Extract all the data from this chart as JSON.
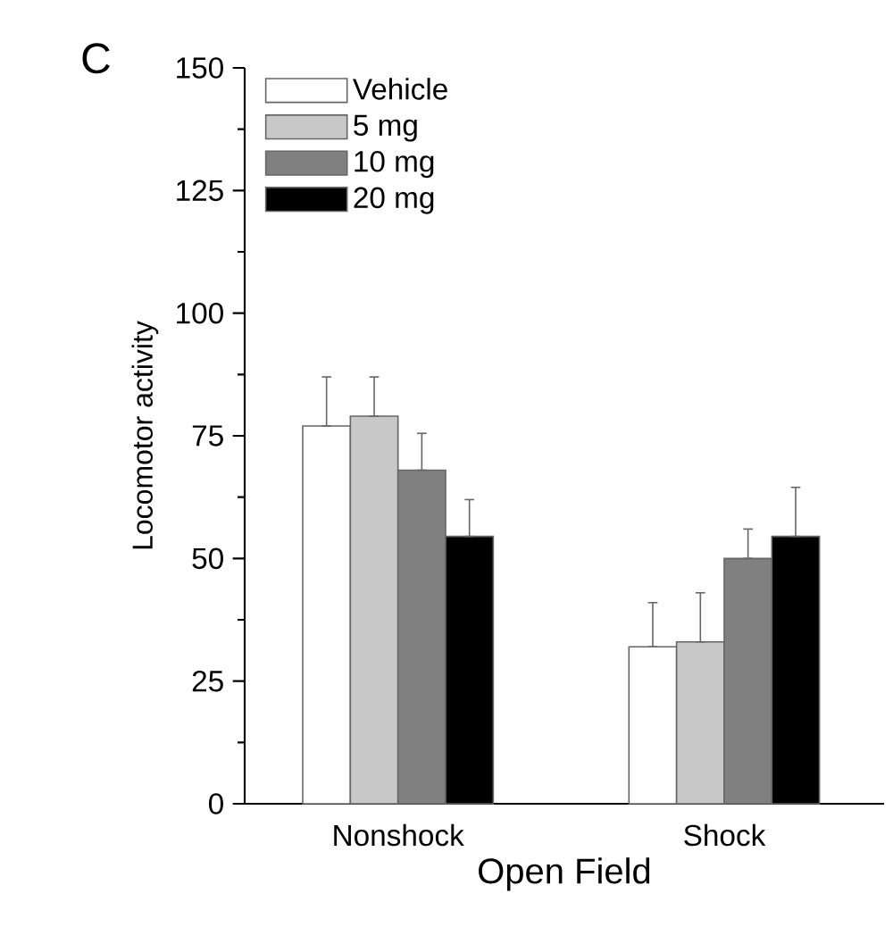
{
  "chart_data": {
    "type": "bar",
    "xlabel": "Open Field",
    "ylabel": "Locomotor activity",
    "annotations": [
      "C"
    ],
    "categories": [
      "Nonshock",
      "Shock"
    ],
    "series": [
      {
        "name": "Vehicle",
        "color": "#ffffff",
        "values": [
          77,
          32
        ],
        "errors": [
          [
            77,
            87
          ],
          [
            32,
            41
          ]
        ]
      },
      {
        "name": "5 mg",
        "color": "#c8c8c8",
        "values": [
          79,
          33
        ],
        "errors": [
          [
            79,
            87
          ],
          [
            33,
            43
          ]
        ]
      },
      {
        "name": "10 mg",
        "color": "#808080",
        "values": [
          68,
          50
        ],
        "errors": [
          [
            68,
            75.5
          ],
          [
            50,
            56
          ]
        ]
      },
      {
        "name": "20 mg",
        "color": "#000000",
        "values": [
          54.5,
          54.5
        ],
        "errors": [
          [
            54.5,
            62
          ],
          [
            54.5,
            64.5
          ]
        ]
      }
    ],
    "ylim": [
      0,
      150
    ],
    "yticks": [
      0,
      25,
      50,
      75,
      100,
      125,
      150
    ],
    "legend": "top left",
    "grid": false
  }
}
